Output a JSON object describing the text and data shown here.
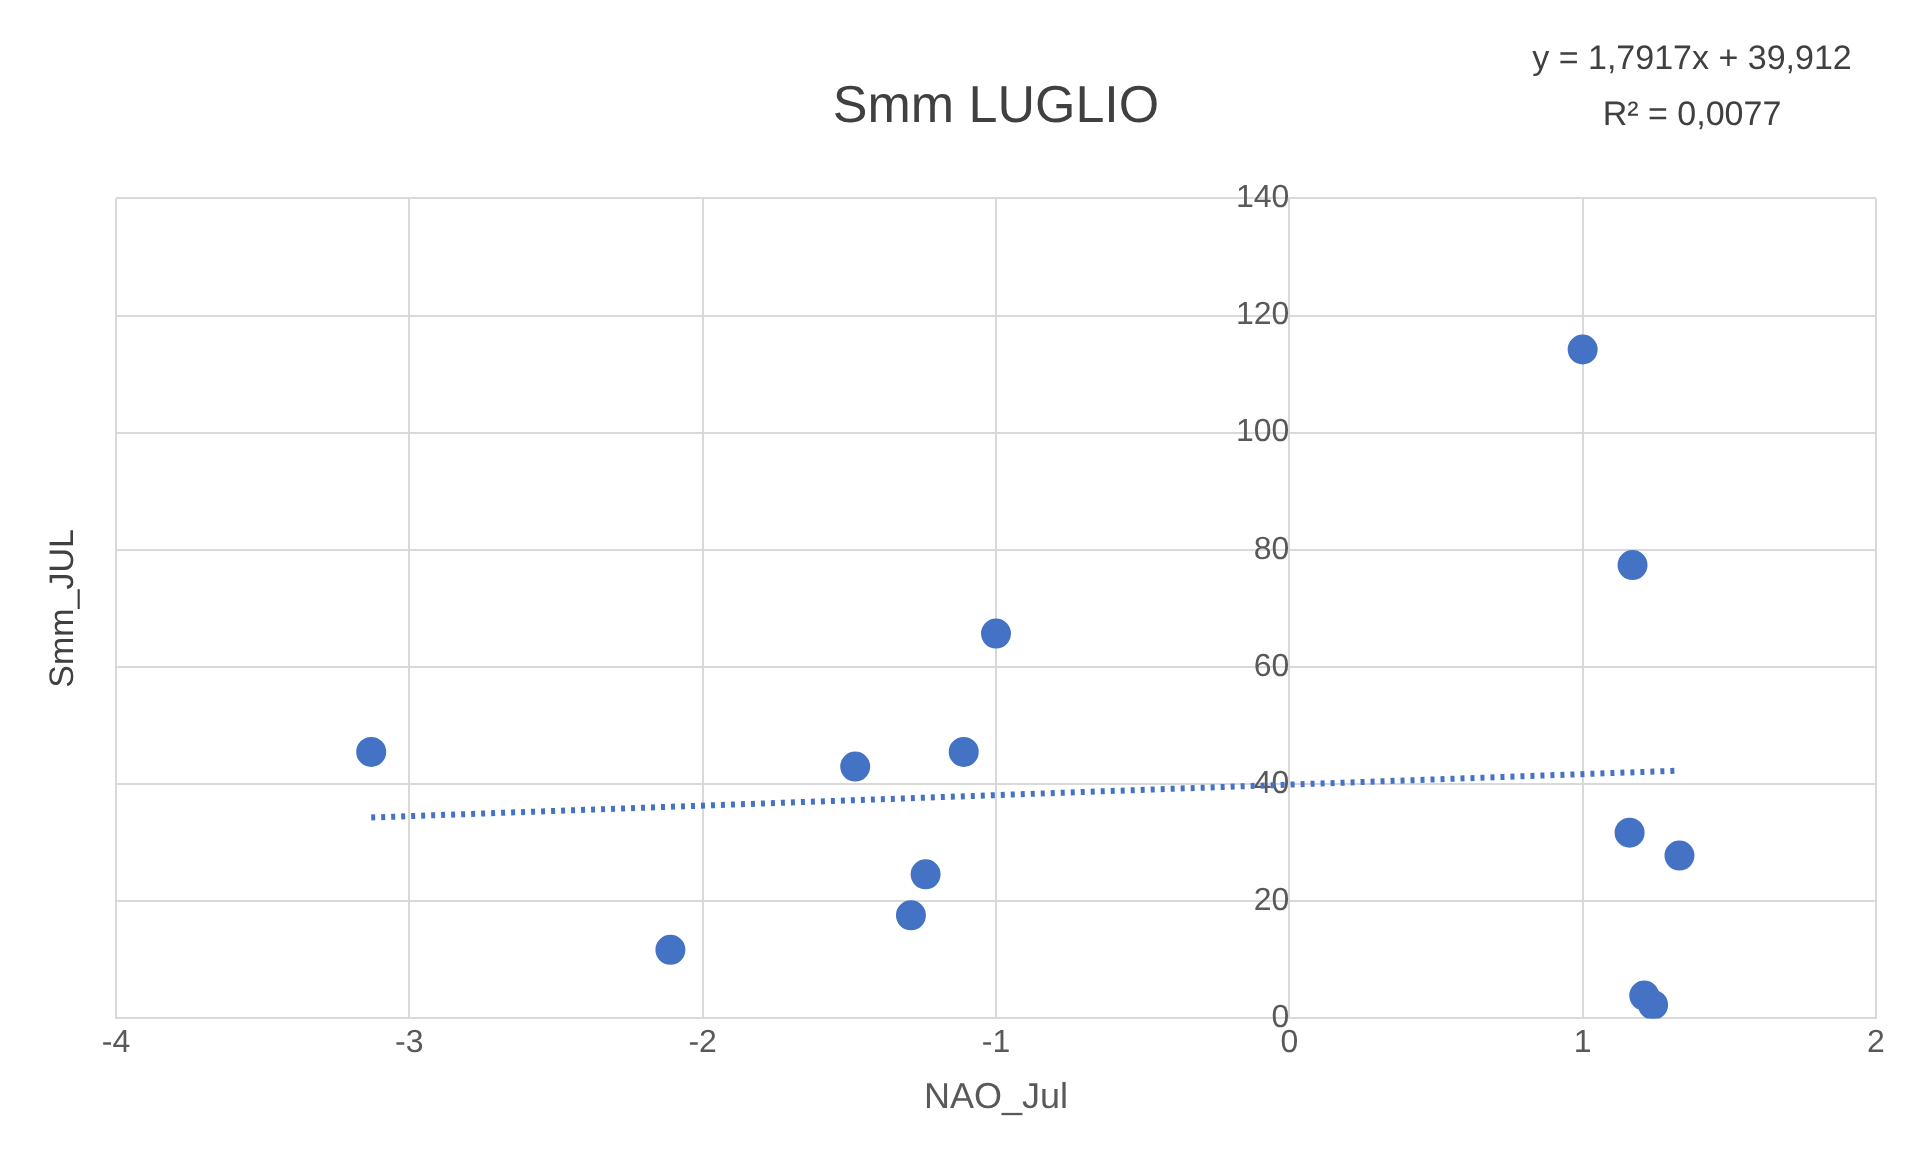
{
  "chart_data": {
    "type": "scatter",
    "title": "Smm LUGLIO",
    "xlabel": "NAO_Jul",
    "ylabel": "Smm_JUL",
    "annotations": [
      "y = 1,7917x + 39,912",
      "R² = 0,0077"
    ],
    "series": [
      {
        "color": "#4472c4",
        "x": [
          -3.13,
          -2.11,
          -1.48,
          -1.29,
          -1.24,
          -1.11,
          -1.0,
          1.0,
          1.17,
          1.16,
          1.33,
          1.21,
          1.24
        ],
        "values": [
          45.5,
          11.7,
          43,
          17.6,
          24.6,
          45.5,
          65.7,
          114.2,
          77.4,
          31.7,
          27.8,
          3.9,
          2.3
        ],
        "marker": "circle"
      },
      {
        "type": "line",
        "color": "#4472c4",
        "x": [
          -3.13,
          1.33
        ],
        "values": [
          34.3,
          42.3
        ],
        "line_style": "dotted",
        "marker": "none"
      }
    ],
    "xlim": [
      -4,
      2
    ],
    "xticks": [
      -4,
      -3,
      -2,
      -1,
      0,
      1,
      2
    ],
    "ylim": [
      0,
      140
    ],
    "yticks": [
      0,
      20,
      40,
      60,
      80,
      100,
      120,
      140
    ],
    "grid": true,
    "legend": false
  }
}
